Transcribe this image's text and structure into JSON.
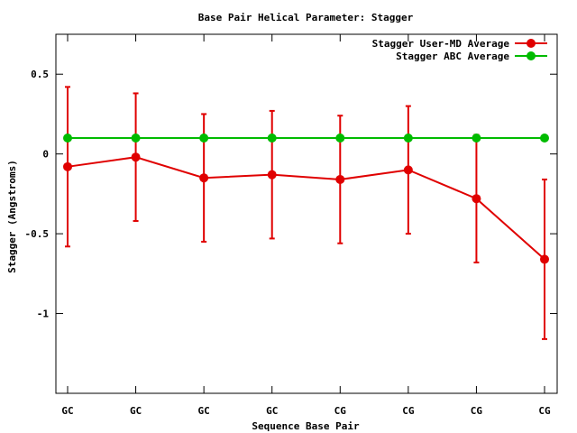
{
  "chart_data": {
    "type": "line",
    "title": "Base Pair Helical Parameter: Stagger",
    "xlabel": "Sequence Base Pair",
    "ylabel": "Stagger (Angstroms)",
    "categories": [
      "GC",
      "GC",
      "GC",
      "GC",
      "CG",
      "CG",
      "CG",
      "CG"
    ],
    "ylim": [
      -1.5,
      0.75
    ],
    "yticks": [
      0.5,
      0,
      -0.5,
      -1
    ],
    "ytick_labels": [
      "0.5",
      "0",
      "-0.5",
      "-1"
    ],
    "grid": false,
    "legend_position": "top-right",
    "series": [
      {
        "name": "Stagger User-MD Average",
        "color": "#e00000",
        "values": [
          -0.08,
          -0.02,
          -0.15,
          -0.13,
          -0.16,
          -0.1,
          -0.28,
          -0.66
        ],
        "error": [
          0.5,
          0.4,
          0.4,
          0.4,
          0.4,
          0.4,
          0.4,
          0.5
        ]
      },
      {
        "name": "Stagger ABC Average",
        "color": "#00bb00",
        "values": [
          0.1,
          0.1,
          0.1,
          0.1,
          0.1,
          0.1,
          0.1,
          0.1
        ]
      }
    ]
  }
}
